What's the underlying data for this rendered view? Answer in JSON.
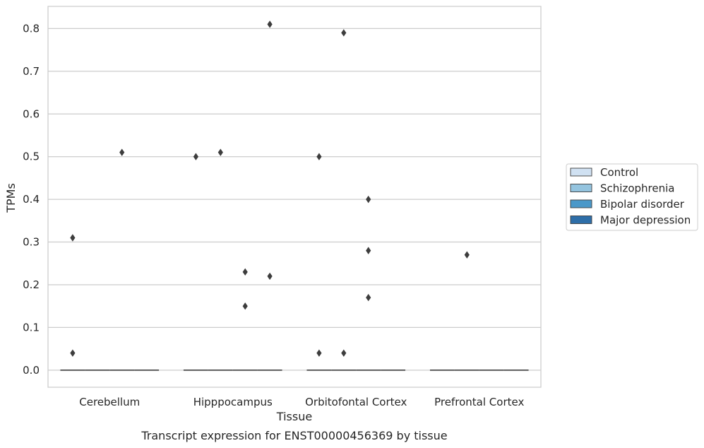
{
  "chart_data": {
    "type": "box",
    "title": "",
    "caption": "Transcript expression for ENST00000456369 by tissue",
    "xlabel": "Tissue",
    "ylabel": "TPMs",
    "ylim": [
      -0.04,
      0.852
    ],
    "yticks": [
      "0.0",
      "0.1",
      "0.2",
      "0.3",
      "0.4",
      "0.5",
      "0.6",
      "0.7",
      "0.8"
    ],
    "ytick_values": [
      0,
      0.1,
      0.2,
      0.3,
      0.4,
      0.5,
      0.6,
      0.7,
      0.8
    ],
    "grid": true,
    "legend_position": "right",
    "categories": [
      "Cerebellum",
      "Hipppocampus",
      "Orbitofontal Cortex",
      "Prefrontal Cortex"
    ],
    "series": [
      {
        "name": "Control",
        "color": "#d0e1f2",
        "median": [
          0,
          0,
          0,
          0
        ],
        "outliers": [
          [
            0.31,
            0.04
          ],
          [
            0.5
          ],
          [
            0.5,
            0.04
          ],
          []
        ]
      },
      {
        "name": "Schizophrenia",
        "color": "#94c4df",
        "median": [
          0,
          0,
          0,
          0
        ],
        "outliers": [
          [],
          [
            0.51
          ],
          [
            0.79,
            0.04
          ],
          [
            0.27
          ]
        ]
      },
      {
        "name": "Bipolar disorder",
        "color": "#4a98c9",
        "median": [
          0,
          0,
          0,
          0
        ],
        "outliers": [
          [
            0.51
          ],
          [
            0.23,
            0.15
          ],
          [
            0.4,
            0.28,
            0.17
          ],
          []
        ]
      },
      {
        "name": "Major depression",
        "color": "#2e6ea8",
        "median": [
          0,
          0,
          0,
          0
        ],
        "outliers": [
          [],
          [
            0.81,
            0.22
          ],
          [],
          []
        ]
      }
    ]
  }
}
